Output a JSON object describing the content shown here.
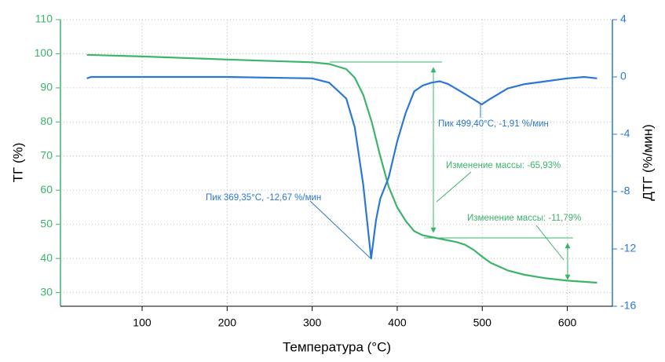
{
  "chart_data": {
    "type": "line",
    "xlabel": "Температура (°C)",
    "ylabel": "ТГ (%)",
    "y2label": "ДТГ (%/мин)",
    "xlim": [
      4,
      653
    ],
    "xticks": [
      100,
      200,
      300,
      400,
      500,
      600
    ],
    "ylim": [
      26,
      110
    ],
    "yticks": [
      30,
      40,
      50,
      60,
      70,
      80,
      90,
      100,
      110
    ],
    "y2lim": [
      -16,
      4
    ],
    "y2ticks": [
      -16,
      -12,
      -8,
      -4,
      0,
      4
    ],
    "grid": true,
    "series": [
      {
        "name": "ТГ",
        "color": "#3cb46a",
        "axis": "y",
        "x": [
          35,
          100,
          200,
          300,
          320,
          340,
          350,
          360,
          370,
          380,
          390,
          400,
          410,
          420,
          430,
          450,
          470,
          480,
          490,
          500,
          510,
          530,
          550,
          575,
          600,
          635
        ],
        "values": [
          99.7,
          99.2,
          98.3,
          97.5,
          97,
          95.5,
          93,
          88,
          80,
          70,
          61,
          55,
          51,
          48,
          46.8,
          45.8,
          44.8,
          44,
          42.5,
          40.5,
          38.7,
          36.5,
          35.2,
          34.2,
          33.5,
          32.9
        ]
      },
      {
        "name": "ДТГ",
        "color": "#2b78d4",
        "axis": "y2",
        "x": [
          35,
          40,
          100,
          200,
          300,
          320,
          340,
          350,
          360,
          369.35,
          375,
          380,
          390,
          400,
          410,
          420,
          430,
          440,
          450,
          460,
          480,
          499.4,
          510,
          530,
          550,
          575,
          600,
          620,
          635
        ],
        "values": [
          -0.1,
          0,
          0,
          0,
          -0.1,
          -0.4,
          -1.5,
          -3.5,
          -7.5,
          -12.67,
          -10,
          -8.5,
          -7,
          -4.5,
          -2.5,
          -1,
          -0.6,
          -0.4,
          -0.3,
          -0.5,
          -1.2,
          -1.91,
          -1.5,
          -0.8,
          -0.5,
          -0.3,
          -0.1,
          0,
          -0.1
        ]
      }
    ],
    "annotations": [
      "Пик 369,35°C, -12,67 %/мин",
      "Пик 499,40°C, -1,91 %/мин",
      "Изменение массы: -65,93%",
      "Изменение массы: -11,79%"
    ]
  }
}
